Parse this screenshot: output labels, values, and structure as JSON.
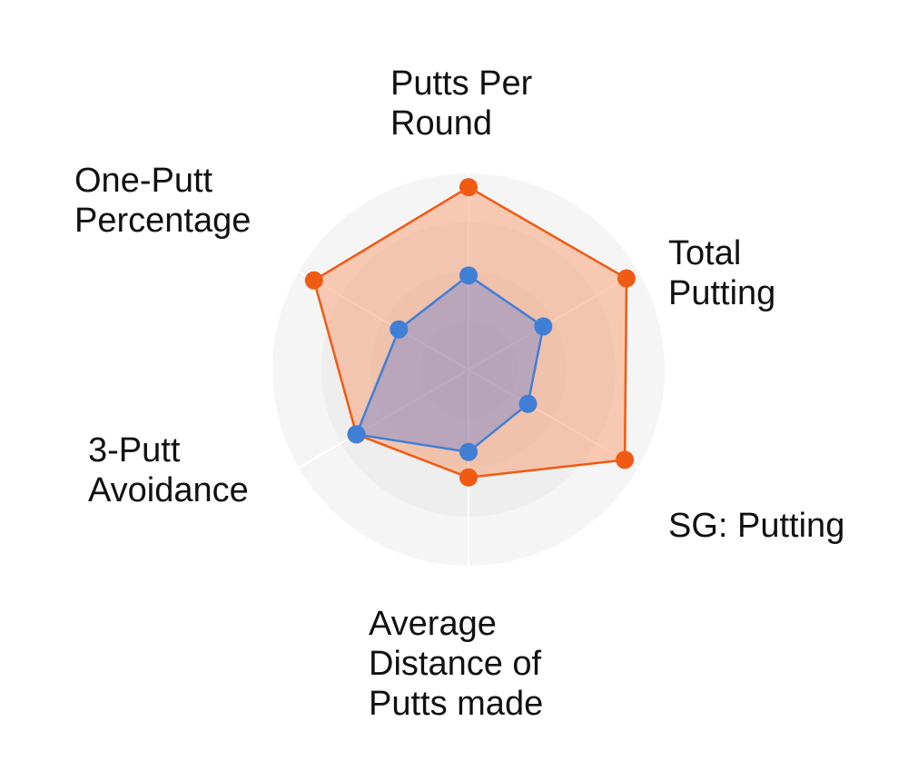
{
  "chart_data": {
    "type": "radar",
    "title": "",
    "axes": [
      {
        "name": "Putts Per Round",
        "lines": [
          "Putts Per",
          "Round"
        ]
      },
      {
        "name": "Total Putting",
        "lines": [
          "Total",
          "Putting"
        ]
      },
      {
        "name": "SG: Putting",
        "lines": [
          "SG: Putting"
        ]
      },
      {
        "name": "Average Distance of Putts made",
        "lines": [
          "Average",
          "Distance of",
          "Putts made"
        ]
      },
      {
        "name": "3-Putt Avoidance",
        "lines": [
          "3-Putt",
          "Avoidance"
        ]
      },
      {
        "name": "One-Putt Percentage",
        "lines": [
          "One-Putt",
          "Percentage"
        ]
      }
    ],
    "range": [
      0,
      1
    ],
    "grid": true,
    "legend": "none",
    "series": [
      {
        "color": "#f05a12",
        "fill": "#f7a27a",
        "values": [
          0.93,
          0.93,
          0.92,
          0.55,
          0.66,
          0.91
        ]
      },
      {
        "color": "#3f7fd6",
        "fill": "#8c8fc6",
        "values": [
          0.48,
          0.44,
          0.35,
          0.42,
          0.66,
          0.41
        ]
      }
    ]
  }
}
